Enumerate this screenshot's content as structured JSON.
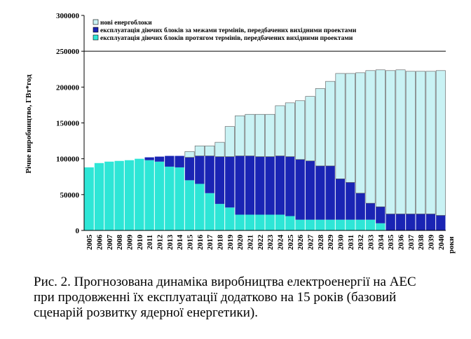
{
  "caption": {
    "line1": "Рис. 2. Прогнозована динаміка виробництва електроенергії на АЕС",
    "line2": "при продовженні їх експлуатації додатково на 15 років (базовий",
    "line3": "сценарій розвитку ядерної енергетики)."
  },
  "chart_data": {
    "type": "bar",
    "stacked": true,
    "ylabel": "Річне виробництво, ГВт*год",
    "xlabel": "роки",
    "ylim": [
      0,
      300000
    ],
    "yticks": [
      0,
      50000,
      100000,
      150000,
      200000,
      250000,
      300000
    ],
    "ytick_labels": [
      "0",
      "50000",
      "100000",
      "150000",
      "200000",
      "250000",
      "300000"
    ],
    "reference_line": 250000,
    "legend_position": "top",
    "categories": [
      "2005",
      "2006",
      "2007",
      "2008",
      "2009",
      "2010",
      "2011",
      "2012",
      "2013",
      "2014",
      "2015",
      "2016",
      "2017",
      "2018",
      "2019",
      "2020",
      "2021",
      "2022",
      "2023",
      "2024",
      "2025",
      "2026",
      "2027",
      "2028",
      "2029",
      "2030",
      "2031",
      "2032",
      "2033",
      "2034",
      "2035",
      "2036",
      "2037",
      "2038",
      "2039",
      "2040"
    ],
    "series": [
      {
        "name": "експлуатація діючих блоків протягом термінів, передбачених вихідними проектами",
        "color": "#2ee6d6",
        "values": [
          88000,
          94000,
          96000,
          97000,
          98000,
          100000,
          98000,
          96000,
          89000,
          88000,
          70000,
          65000,
          52000,
          37000,
          32000,
          22000,
          22000,
          22000,
          22000,
          22000,
          20000,
          15000,
          15000,
          15000,
          15000,
          15000,
          15000,
          15000,
          15000,
          10000,
          0,
          0,
          0,
          0,
          0,
          0
        ]
      },
      {
        "name": "експлуатація діючих блоків за межами термінів, передбачених вихідними проектами",
        "color": "#1a24b4",
        "values": [
          0,
          0,
          0,
          0,
          0,
          0,
          4000,
          7000,
          15000,
          16000,
          32000,
          39000,
          52000,
          66000,
          71000,
          82000,
          82000,
          81000,
          81000,
          82000,
          83000,
          84000,
          82000,
          75000,
          75000,
          57000,
          52000,
          37000,
          23000,
          23000,
          23000,
          23000,
          23000,
          23000,
          23000,
          21000
        ]
      },
      {
        "name": "нові енергоблоки",
        "color": "#c9f2f4",
        "values": [
          0,
          0,
          0,
          0,
          0,
          0,
          0,
          0,
          0,
          0,
          8000,
          14000,
          14000,
          20000,
          42000,
          56000,
          58000,
          59000,
          59000,
          70000,
          75000,
          82000,
          90000,
          108000,
          118000,
          147000,
          152000,
          168000,
          185000,
          191000,
          200000,
          201000,
          199000,
          199000,
          199000,
          202000
        ]
      }
    ]
  }
}
